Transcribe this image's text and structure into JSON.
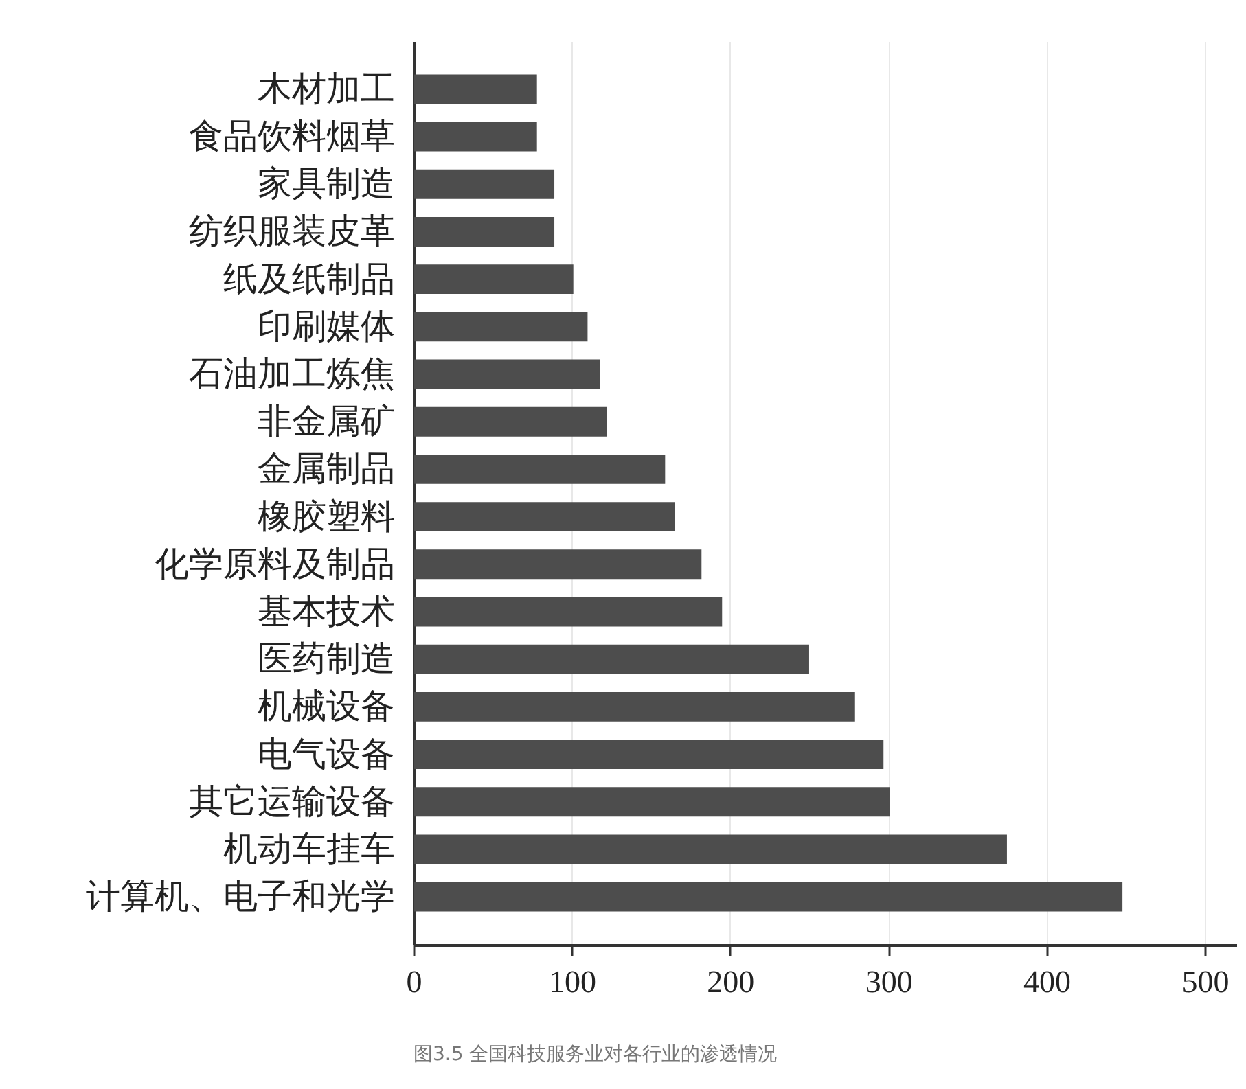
{
  "chart_data": {
    "type": "bar",
    "orientation": "horizontal",
    "categories": [
      "木材加工",
      "食品饮料烟草",
      "家具制造",
      "纺织服装皮革",
      "纸及纸制品",
      "印刷媒体",
      "石油加工炼焦",
      "非金属矿",
      "金属制品",
      "橡胶塑料",
      "化学原料及制品",
      "基本技术",
      "医药制造",
      "机械设备",
      "电气设备",
      "其它运输设备",
      "机动车挂车",
      "计算机、电子和光学"
    ],
    "values": [
      78,
      78,
      89,
      89,
      101,
      110,
      118,
      122,
      159,
      165,
      182,
      195,
      250,
      279,
      297,
      301,
      375,
      448
    ],
    "color": "#4d4d4d",
    "xlim": [
      0,
      520
    ],
    "xticks": [
      0,
      100,
      200,
      300,
      400,
      500
    ],
    "grid": "x",
    "annotations": [
      "图3.5 全国科技服务业对各行业的渗透情况"
    ]
  }
}
